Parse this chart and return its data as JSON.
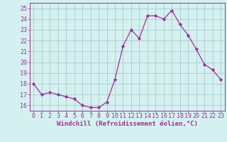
{
  "x": [
    0,
    1,
    2,
    3,
    4,
    5,
    6,
    7,
    8,
    9,
    10,
    11,
    12,
    13,
    14,
    15,
    16,
    17,
    18,
    19,
    20,
    21,
    22,
    23
  ],
  "y": [
    18.0,
    17.0,
    17.2,
    17.0,
    16.8,
    16.6,
    16.0,
    15.8,
    15.8,
    16.3,
    18.4,
    21.5,
    23.0,
    22.2,
    24.3,
    24.3,
    24.0,
    24.8,
    23.5,
    22.5,
    21.2,
    19.8,
    19.3,
    18.4
  ],
  "line_color": "#993399",
  "marker": "D",
  "marker_size": 2.2,
  "bg_color": "#d5f0f0",
  "grid_color": "#aacccc",
  "xlabel": "Windchill (Refroidissement éolien,°C)",
  "ylim": [
    15.5,
    25.5
  ],
  "xlim": [
    -0.5,
    23.5
  ],
  "yticks": [
    16,
    17,
    18,
    19,
    20,
    21,
    22,
    23,
    24,
    25
  ],
  "xticks": [
    0,
    1,
    2,
    3,
    4,
    5,
    6,
    7,
    8,
    9,
    10,
    11,
    12,
    13,
    14,
    15,
    16,
    17,
    18,
    19,
    20,
    21,
    22,
    23
  ],
  "font_color": "#993399",
  "label_fontsize": 6.5,
  "tick_fontsize": 6.0,
  "spine_color": "#993399",
  "linewidth": 0.9
}
